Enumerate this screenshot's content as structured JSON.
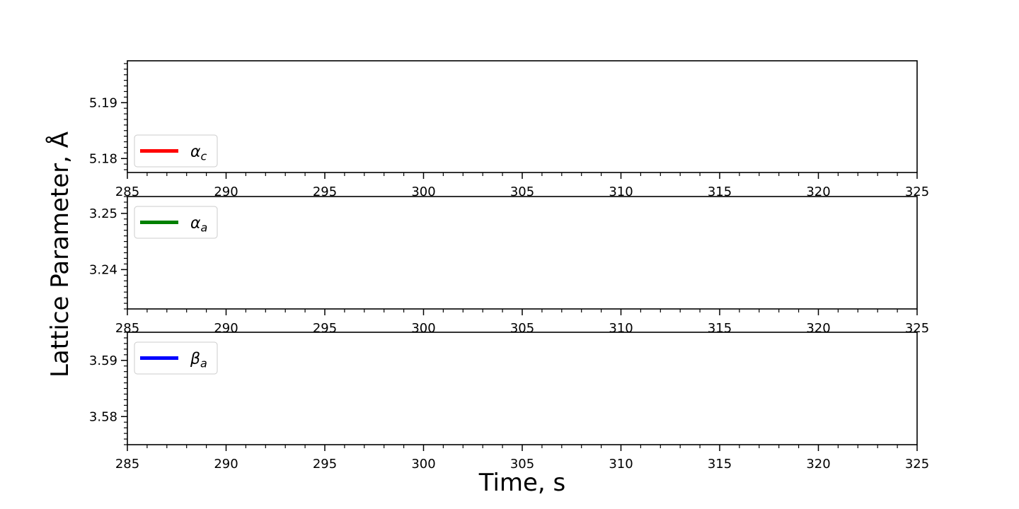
{
  "chart_data": {
    "type": "line",
    "xlabel": "Time, s",
    "ylabel": "Lattice Parameter, Å",
    "shared_x": true,
    "grid": false,
    "legend_placement": "left",
    "panels": [
      {
        "series": [
          {
            "name": "α_c",
            "label_main": "α",
            "label_sub": "c",
            "color": "#ff0000",
            "x": [],
            "y": []
          }
        ],
        "xlim": [
          285,
          325
        ],
        "ylim": [
          5.1775,
          5.1975
        ],
        "x_ticks": [
          "285",
          "290",
          "295",
          "300",
          "305",
          "310",
          "315",
          "320",
          "325"
        ],
        "y_ticks": [
          "5.18",
          "5.19"
        ],
        "legend_placement": "lower left"
      },
      {
        "series": [
          {
            "name": "α_a",
            "label_main": "α",
            "label_sub": "a",
            "color": "#008000",
            "x": [],
            "y": []
          }
        ],
        "xlim": [
          285,
          325
        ],
        "ylim": [
          3.233,
          3.253
        ],
        "x_ticks": [
          "285",
          "290",
          "295",
          "300",
          "305",
          "310",
          "315",
          "320",
          "325"
        ],
        "y_ticks": [
          "3.24",
          "3.25"
        ],
        "legend_placement": "upper left"
      },
      {
        "series": [
          {
            "name": "β_a",
            "label_main": "β",
            "label_sub": "a",
            "color": "#0000ff",
            "x": [],
            "y": []
          }
        ],
        "xlim": [
          285,
          325
        ],
        "ylim": [
          3.575,
          3.595
        ],
        "x_ticks": [
          "285",
          "290",
          "295",
          "300",
          "305",
          "310",
          "315",
          "320",
          "325"
        ],
        "y_ticks": [
          "3.58",
          "3.59"
        ],
        "legend_placement": "upper left"
      }
    ]
  }
}
